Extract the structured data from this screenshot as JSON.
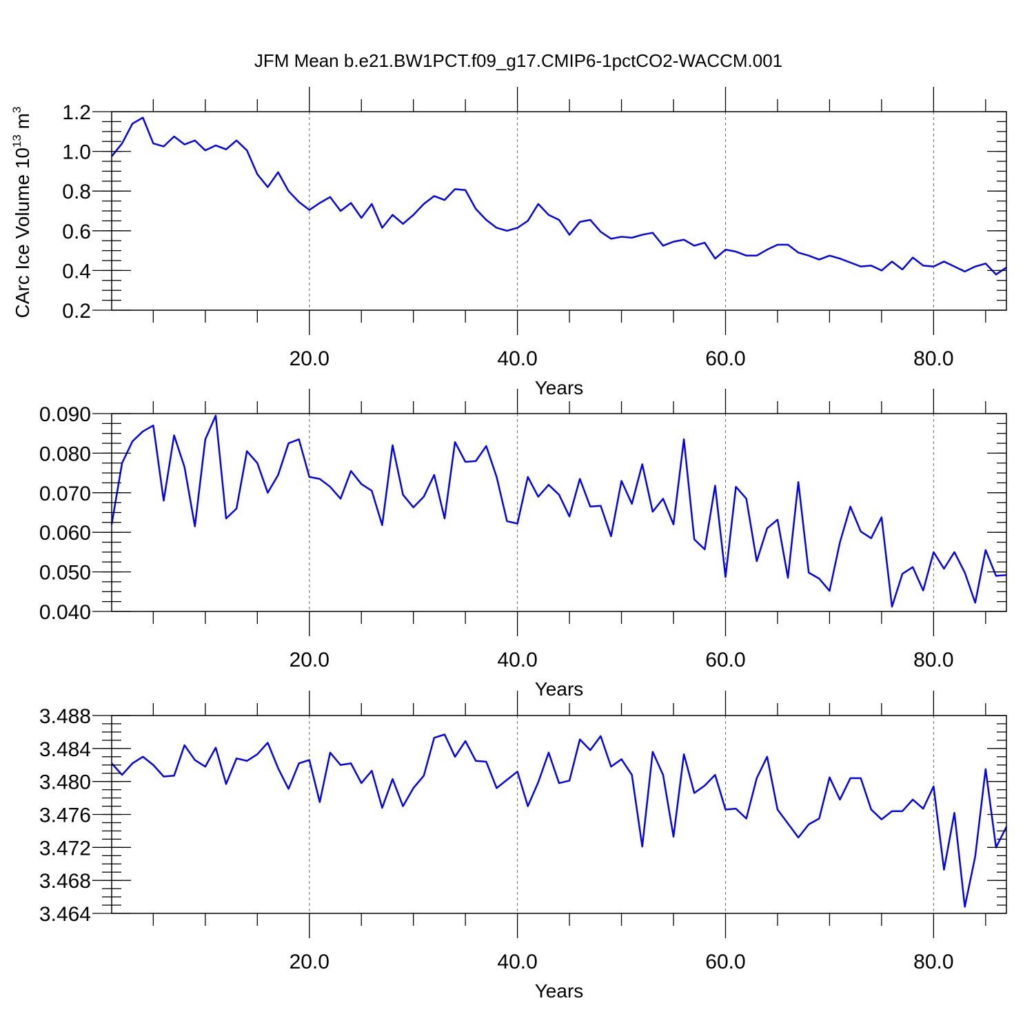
{
  "title": "JFM Mean b.e21.BW1PCT.f09_g17.CMIP6-1pctCO2-WACCM.001",
  "series_color": "#0000ff",
  "chart_data": [
    {
      "type": "line",
      "ylabel_main": "CArc Ice Volume 10",
      "ylabel_sup": "13",
      "ylabel_unit": "m",
      "ylabel_unit_sup": "3",
      "xlabel": "Years",
      "xlim": [
        1,
        87
      ],
      "ylim": [
        0.2,
        1.2
      ],
      "xticks": [
        20,
        40,
        60,
        80
      ],
      "xtick_labels": [
        "20.0",
        "40.0",
        "60.0",
        "80.0"
      ],
      "yticks": [
        0.2,
        0.4,
        0.6,
        0.8,
        1.0,
        1.2
      ],
      "ytick_labels": [
        "0.2",
        "0.4",
        "0.6",
        "0.8",
        "1.0",
        "1.2"
      ],
      "y_minor_step": 0.05,
      "grid": "x-dashed",
      "x": [
        1,
        2,
        3,
        4,
        5,
        6,
        7,
        8,
        9,
        10,
        11,
        12,
        13,
        14,
        15,
        16,
        17,
        18,
        19,
        20,
        21,
        22,
        23,
        24,
        25,
        26,
        27,
        28,
        29,
        30,
        31,
        32,
        33,
        34,
        35,
        36,
        37,
        38,
        39,
        40,
        41,
        42,
        43,
        44,
        45,
        46,
        47,
        48,
        49,
        50,
        51,
        52,
        53,
        54,
        55,
        56,
        57,
        58,
        59,
        60,
        61,
        62,
        63,
        64,
        65,
        66,
        67,
        68,
        69,
        70,
        71,
        72,
        73,
        74,
        75,
        76,
        77,
        78,
        79,
        80,
        81,
        82,
        83,
        84,
        85,
        86,
        87
      ],
      "values": [
        0.975,
        1.04,
        1.14,
        1.17,
        1.04,
        1.025,
        1.075,
        1.035,
        1.055,
        1.005,
        1.03,
        1.01,
        1.055,
        1.005,
        0.885,
        0.82,
        0.895,
        0.8,
        0.745,
        0.705,
        0.74,
        0.77,
        0.7,
        0.74,
        0.665,
        0.735,
        0.615,
        0.68,
        0.635,
        0.68,
        0.735,
        0.775,
        0.755,
        0.81,
        0.805,
        0.71,
        0.655,
        0.615,
        0.6,
        0.615,
        0.65,
        0.735,
        0.68,
        0.655,
        0.58,
        0.645,
        0.655,
        0.595,
        0.56,
        0.57,
        0.565,
        0.58,
        0.59,
        0.525,
        0.545,
        0.555,
        0.525,
        0.54,
        0.46,
        0.505,
        0.495,
        0.475,
        0.475,
        0.505,
        0.53,
        0.53,
        0.49,
        0.475,
        0.455,
        0.475,
        0.46,
        0.44,
        0.42,
        0.425,
        0.4,
        0.445,
        0.405,
        0.465,
        0.425,
        0.42,
        0.445,
        0.42,
        0.395,
        0.42,
        0.435,
        0.38,
        0.415
      ]
    },
    {
      "type": "line",
      "xlabel": "Years",
      "xlim": [
        1,
        87
      ],
      "ylim": [
        0.04,
        0.09
      ],
      "xticks": [
        20,
        40,
        60,
        80
      ],
      "xtick_labels": [
        "20.0",
        "40.0",
        "60.0",
        "80.0"
      ],
      "yticks": [
        0.04,
        0.05,
        0.06,
        0.07,
        0.08,
        0.09
      ],
      "ytick_labels": [
        "0.040",
        "0.050",
        "0.060",
        "0.070",
        "0.080",
        "0.090"
      ],
      "y_minor_step": 0.0025,
      "grid": "x-dashed",
      "x": [
        1,
        2,
        3,
        4,
        5,
        6,
        7,
        8,
        9,
        10,
        11,
        12,
        13,
        14,
        15,
        16,
        17,
        18,
        19,
        20,
        21,
        22,
        23,
        24,
        25,
        26,
        27,
        28,
        29,
        30,
        31,
        32,
        33,
        34,
        35,
        36,
        37,
        38,
        39,
        40,
        41,
        42,
        43,
        44,
        45,
        46,
        47,
        48,
        49,
        50,
        51,
        52,
        53,
        54,
        55,
        56,
        57,
        58,
        59,
        60,
        61,
        62,
        63,
        64,
        65,
        66,
        67,
        68,
        69,
        70,
        71,
        72,
        73,
        74,
        75,
        76,
        77,
        78,
        79,
        80,
        81,
        82,
        83,
        84,
        85,
        86,
        87
      ],
      "values": [
        0.062,
        0.0775,
        0.083,
        0.0855,
        0.087,
        0.068,
        0.0845,
        0.0765,
        0.0615,
        0.0835,
        0.0895,
        0.0635,
        0.066,
        0.0805,
        0.0775,
        0.07,
        0.0745,
        0.0825,
        0.0835,
        0.074,
        0.0735,
        0.0715,
        0.0685,
        0.0755,
        0.0722,
        0.0705,
        0.0618,
        0.082,
        0.0695,
        0.0663,
        0.069,
        0.0745,
        0.0635,
        0.0828,
        0.0778,
        0.078,
        0.0818,
        0.074,
        0.0628,
        0.0622,
        0.074,
        0.069,
        0.072,
        0.0695,
        0.064,
        0.0735,
        0.0665,
        0.0667,
        0.059,
        0.073,
        0.0672,
        0.0772,
        0.0652,
        0.0685,
        0.062,
        0.0835,
        0.0582,
        0.0557,
        0.0718,
        0.0487,
        0.0715,
        0.0685,
        0.0527,
        0.061,
        0.0632,
        0.0485,
        0.0727,
        0.0498,
        0.0483,
        0.0452,
        0.0575,
        0.0665,
        0.0602,
        0.0585,
        0.0638,
        0.0412,
        0.0495,
        0.0512,
        0.0453,
        0.055,
        0.0508,
        0.055,
        0.0498,
        0.0422,
        0.0555,
        0.049,
        0.0492
      ]
    },
    {
      "type": "line",
      "xlabel": "Years",
      "xlim": [
        1,
        87
      ],
      "ylim": [
        3.464,
        3.488
      ],
      "xticks": [
        20,
        40,
        60,
        80
      ],
      "xtick_labels": [
        "20.0",
        "40.0",
        "60.0",
        "80.0"
      ],
      "yticks": [
        3.464,
        3.468,
        3.472,
        3.476,
        3.48,
        3.484,
        3.488
      ],
      "ytick_labels": [
        "3.464",
        "3.468",
        "3.472",
        "3.476",
        "3.480",
        "3.484",
        "3.488"
      ],
      "y_minor_step": 0.001,
      "grid": "x-dashed",
      "x": [
        1,
        2,
        3,
        4,
        5,
        6,
        7,
        8,
        9,
        10,
        11,
        12,
        13,
        14,
        15,
        16,
        17,
        18,
        19,
        20,
        21,
        22,
        23,
        24,
        25,
        26,
        27,
        28,
        29,
        30,
        31,
        32,
        33,
        34,
        35,
        36,
        37,
        38,
        39,
        40,
        41,
        42,
        43,
        44,
        45,
        46,
        47,
        48,
        49,
        50,
        51,
        52,
        53,
        54,
        55,
        56,
        57,
        58,
        59,
        60,
        61,
        62,
        63,
        64,
        65,
        66,
        67,
        68,
        69,
        70,
        71,
        72,
        73,
        74,
        75,
        76,
        77,
        78,
        79,
        80,
        81,
        82,
        83,
        84,
        85,
        86,
        87
      ],
      "values": [
        3.4822,
        3.4808,
        3.4822,
        3.483,
        3.482,
        3.4806,
        3.4807,
        3.4844,
        3.4826,
        3.4818,
        3.4841,
        3.4797,
        3.4828,
        3.4825,
        3.4833,
        3.4847,
        3.4816,
        3.4791,
        3.4822,
        3.4826,
        3.4775,
        3.4835,
        3.482,
        3.4822,
        3.4798,
        3.4813,
        3.4768,
        3.4803,
        3.477,
        3.4792,
        3.4807,
        3.4853,
        3.4857,
        3.483,
        3.4849,
        3.4825,
        3.4824,
        3.4792,
        3.4802,
        3.4812,
        3.477,
        3.4799,
        3.4835,
        3.4798,
        3.4801,
        3.4851,
        3.4838,
        3.4855,
        3.4818,
        3.4827,
        3.4808,
        3.4721,
        3.4836,
        3.4808,
        3.4733,
        3.4833,
        3.4786,
        3.4795,
        3.4808,
        3.4766,
        3.4767,
        3.4755,
        3.4804,
        3.483,
        3.4766,
        3.4749,
        3.4732,
        3.4748,
        3.4755,
        3.4805,
        3.4778,
        3.4804,
        3.4804,
        3.4766,
        3.4754,
        3.4764,
        3.4764,
        3.4778,
        3.4767,
        3.4794,
        3.4693,
        3.4762,
        3.4648,
        3.4709,
        3.4815,
        3.472,
        3.4745
      ]
    }
  ]
}
